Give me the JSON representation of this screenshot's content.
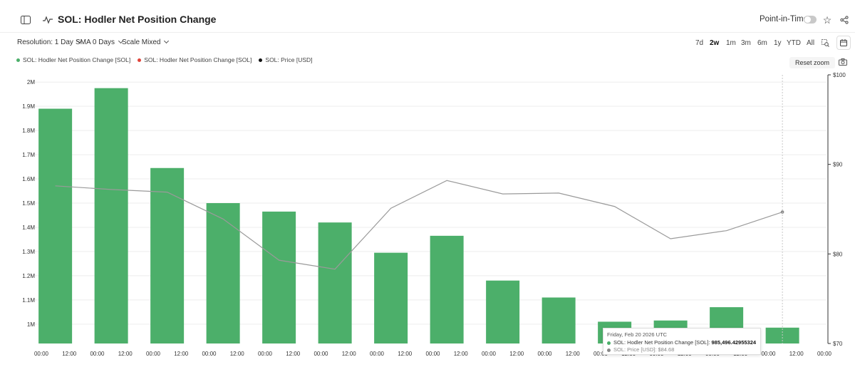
{
  "header": {
    "title": "SOL: Hodler Net Position Change",
    "point_in_time_label": "Point-in-Time"
  },
  "controls": {
    "resolution": "Resolution: 1 Day",
    "sma": "SMA 0 Days",
    "scale": "Scale Mixed",
    "ranges": [
      "7d",
      "2w",
      "1m",
      "3m",
      "6m",
      "1y",
      "YTD",
      "All"
    ],
    "active_range": "2w",
    "reset_zoom": "Reset zoom"
  },
  "legend": [
    {
      "label": "SOL: Hodler Net Position Change [SOL]",
      "color": "#4caf6a"
    },
    {
      "label": "SOL: Hodler Net Position Change [SOL]",
      "color": "#e0443a"
    },
    {
      "label": "SOL: Price [USD]",
      "color": "#111111"
    }
  ],
  "tooltip": {
    "date": "Friday, Feb 20 2026 UTC",
    "hodler_label": "SOL: Hodler Net Position Change [SOL]:",
    "hodler_value": "985,496.42955324",
    "price_label": "SOL: Price [USD]:",
    "price_value": "$84.68"
  },
  "colors": {
    "bar": "#4caf6a",
    "price_line": "#9a9a9a"
  },
  "chart_data": {
    "type": "bar",
    "x_tick_labels": [
      "00:00",
      "12:00",
      "00:00",
      "12:00",
      "00:00",
      "12:00",
      "00:00",
      "12:00",
      "00:00",
      "12:00",
      "00:00",
      "12:00",
      "00:00",
      "12:00",
      "00:00",
      "12:00",
      "00:00",
      "12:00",
      "00:00",
      "12:00",
      "00:00",
      "12:00",
      "00:00",
      "12:00",
      "00:00",
      "12:00",
      "00:00",
      "12:00",
      "00:00"
    ],
    "y_left_ticks": [
      "1M",
      "1.1M",
      "1.2M",
      "1.3M",
      "1.4M",
      "1.5M",
      "1.6M",
      "1.7M",
      "1.8M",
      "1.9M",
      "2M"
    ],
    "y_left_tick_values": [
      1000000,
      1100000,
      1200000,
      1300000,
      1400000,
      1500000,
      1600000,
      1700000,
      1800000,
      1900000,
      2000000
    ],
    "y_right_ticks": [
      "$70",
      "$80",
      "$90",
      "$100"
    ],
    "y_right_tick_values": [
      70,
      80,
      90,
      100
    ],
    "ylim_left": [
      920000,
      2030000
    ],
    "ylim_right": [
      70,
      100
    ],
    "series": [
      {
        "name": "SOL: Hodler Net Position Change [SOL]",
        "type": "bar",
        "axis": "left",
        "values": [
          1890000,
          1975000,
          1645000,
          1500000,
          1465000,
          1420000,
          1295000,
          1365000,
          1180000,
          1110000,
          1010000,
          1015000,
          1070000,
          985496
        ]
      },
      {
        "name": "SOL: Price [USD]",
        "type": "line",
        "axis": "right",
        "values": [
          87.6,
          87.2,
          86.9,
          83.9,
          79.3,
          78.3,
          85.1,
          88.2,
          86.7,
          86.8,
          85.3,
          81.7,
          82.6,
          84.68
        ]
      }
    ]
  }
}
